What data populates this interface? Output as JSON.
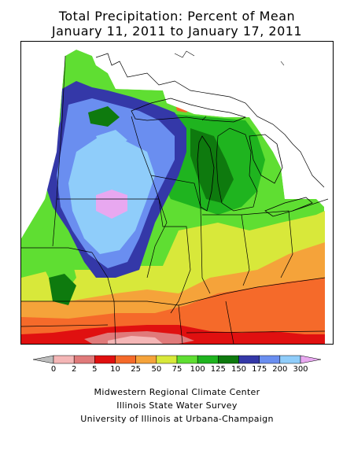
{
  "title": {
    "line1": "Total Precipitation: Percent of Mean",
    "line2": "January 11, 2011 to January 17, 2011"
  },
  "legend": {
    "ticks": [
      "0",
      "2",
      "5",
      "10",
      "25",
      "50",
      "75",
      "100",
      "125",
      "150",
      "175",
      "200",
      "300"
    ],
    "colors": [
      "#bdbdbd",
      "#f4b6b6",
      "#e07a7a",
      "#e01010",
      "#f56a2a",
      "#f5a33a",
      "#d8e83a",
      "#5fde32",
      "#1fb41f",
      "#0e7a0e",
      "#3438a8",
      "#6a8ef0",
      "#8fcdfa",
      "#e8a8f0"
    ]
  },
  "credits": {
    "line1": "Midwestern Regional Climate Center",
    "line2": "Illinois State Water Survey",
    "line3": "University of Illinois at Urbana-Champaign"
  },
  "map_colors": {
    "pct_300plus": "#e8a8f0",
    "pct_200_300": "#8fcdfa",
    "pct_175_200": "#6a8ef0",
    "pct_150_175": "#3438a8",
    "pct_125_150": "#0e7a0e",
    "pct_100_125": "#1fb41f",
    "pct_75_100": "#5fde32",
    "pct_50_75": "#d8e83a",
    "pct_25_50": "#f5a33a",
    "pct_10_25": "#f56a2a",
    "pct_5_10": "#e01010",
    "pct_2_5": "#e07a7a",
    "pct_0_2": "#f4b6b6"
  }
}
